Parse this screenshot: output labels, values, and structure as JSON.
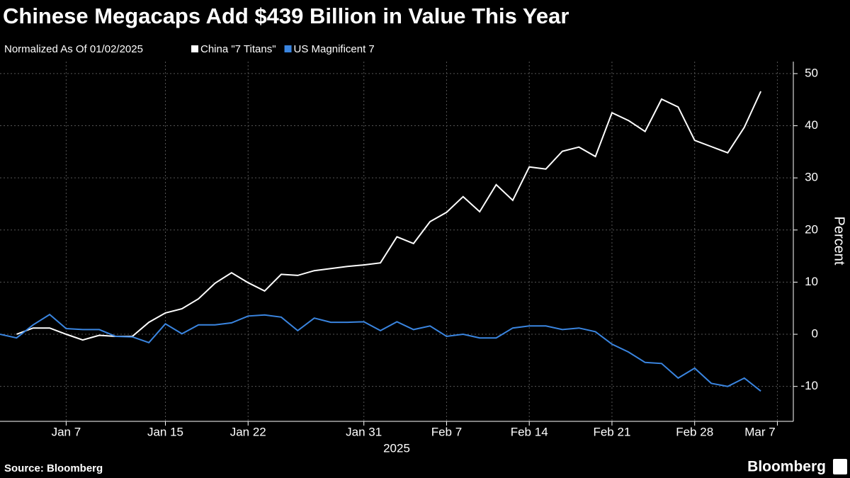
{
  "chart_data": {
    "type": "line",
    "title": "Chinese Megacaps Add $439 Billion in Value This Year",
    "subtitle": "Normalized As Of 01/02/2025",
    "ylabel": "Percent",
    "xlabel": "2025",
    "source": "Source: Bloomberg",
    "brand": "Bloomberg",
    "categories": [
      null,
      null,
      null,
      null,
      "Jan 7",
      null,
      null,
      null,
      null,
      null,
      "Jan 15",
      null,
      null,
      null,
      null,
      "Jan 22",
      null,
      null,
      null,
      null,
      null,
      null,
      "Jan 31",
      null,
      null,
      null,
      null,
      "Feb 7",
      null,
      null,
      null,
      null,
      "Feb 14",
      null,
      null,
      null,
      null,
      "Feb 21",
      null,
      null,
      null,
      null,
      "Feb 28",
      null,
      null,
      null,
      null,
      "Mar 7"
    ],
    "series": [
      {
        "name": "China \"7 Titans\"",
        "color": "#ffffff",
        "values": [
          null,
          0,
          1.2,
          1.2,
          0,
          -1.1,
          -0.2,
          -0.4,
          -0.4,
          2.3,
          4.1,
          4.9,
          6.8,
          9.8,
          11.8,
          9.9,
          8.3,
          11.5,
          11.3,
          12.2,
          12.6,
          13.0,
          13.3,
          13.7,
          18.7,
          17.4,
          21.6,
          23.4,
          26.4,
          23.5,
          28.7,
          25.7,
          32.1,
          31.7,
          35.1,
          35.9,
          34.1,
          42.5,
          41.0,
          38.9,
          45.1,
          43.6,
          37.2,
          36.0,
          34.8,
          39.7,
          46.6,
          null
        ]
      },
      {
        "name": "US Magnificent 7",
        "color": "#3a85e0",
        "values": [
          0,
          -0.7,
          1.8,
          3.8,
          1.1,
          0.9,
          0.9,
          -0.4,
          -0.5,
          -1.6,
          2.0,
          0.1,
          1.8,
          1.8,
          2.2,
          3.5,
          3.7,
          3.3,
          0.7,
          3.1,
          2.3,
          2.3,
          2.4,
          0.7,
          2.4,
          0.9,
          1.6,
          -0.4,
          0,
          -0.7,
          -0.7,
          1.2,
          1.6,
          1.6,
          0.9,
          1.2,
          0.5,
          -1.9,
          -3.4,
          -5.4,
          -5.6,
          -8.4,
          -6.5,
          -9.4,
          -10.0,
          -8.4,
          -10.9,
          null
        ]
      }
    ],
    "ylim": [
      -16.7,
      52.3
    ],
    "yticks": [
      -10,
      0,
      10,
      20,
      30,
      40,
      50
    ],
    "grid": true
  }
}
